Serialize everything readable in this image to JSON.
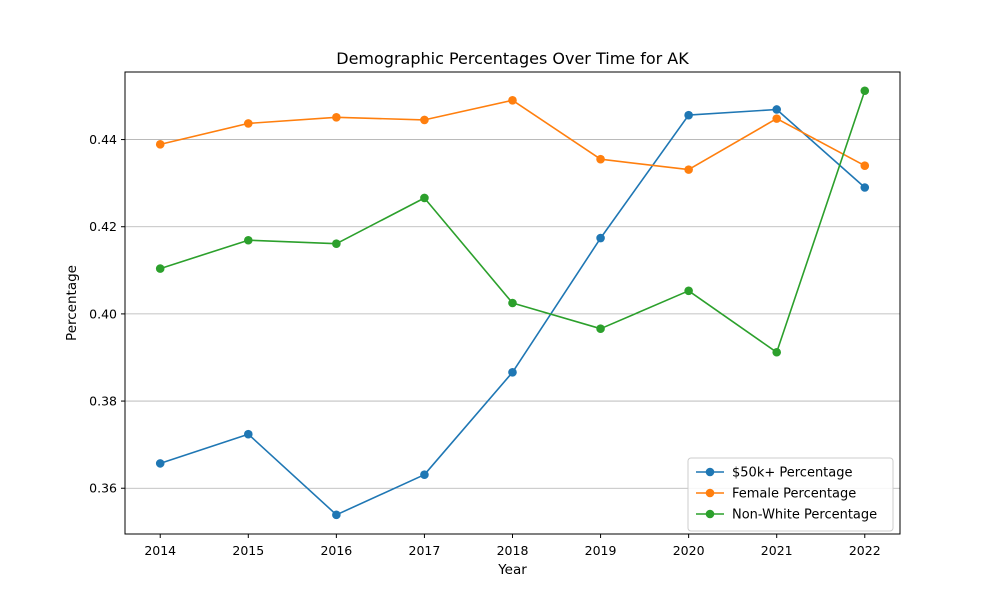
{
  "chart_data": {
    "type": "line",
    "title": "Demographic Percentages Over Time for AK",
    "xlabel": "Year",
    "ylabel": "Percentage",
    "x": [
      2014,
      2015,
      2016,
      2017,
      2018,
      2019,
      2020,
      2021,
      2022
    ],
    "xlim": [
      2013.6,
      2022.4
    ],
    "ylim": [
      0.3495,
      0.4555
    ],
    "y_ticks": [
      0.36,
      0.38,
      0.4,
      0.42,
      0.44
    ],
    "y_tick_labels": [
      "0.36",
      "0.38",
      "0.40",
      "0.42",
      "0.44"
    ],
    "x_tick_labels": [
      "2014",
      "2015",
      "2016",
      "2017",
      "2018",
      "2019",
      "2020",
      "2021",
      "2022"
    ],
    "grid": "horizontal",
    "legend_position": "lower-right",
    "series": [
      {
        "name": "$50k+ Percentage",
        "color": "#1f77b4",
        "values": [
          0.3657,
          0.3724,
          0.3539,
          0.3631,
          0.3866,
          0.4174,
          0.4456,
          0.4469,
          0.429
        ]
      },
      {
        "name": "Female Percentage",
        "color": "#ff7f0e",
        "values": [
          0.4389,
          0.4437,
          0.4451,
          0.4445,
          0.449,
          0.4355,
          0.4331,
          0.4448,
          0.434
        ]
      },
      {
        "name": "Non-White Percentage",
        "color": "#2ca02c",
        "values": [
          0.4104,
          0.4169,
          0.4161,
          0.4266,
          0.4025,
          0.3966,
          0.4053,
          0.3912,
          0.4512
        ]
      }
    ]
  }
}
